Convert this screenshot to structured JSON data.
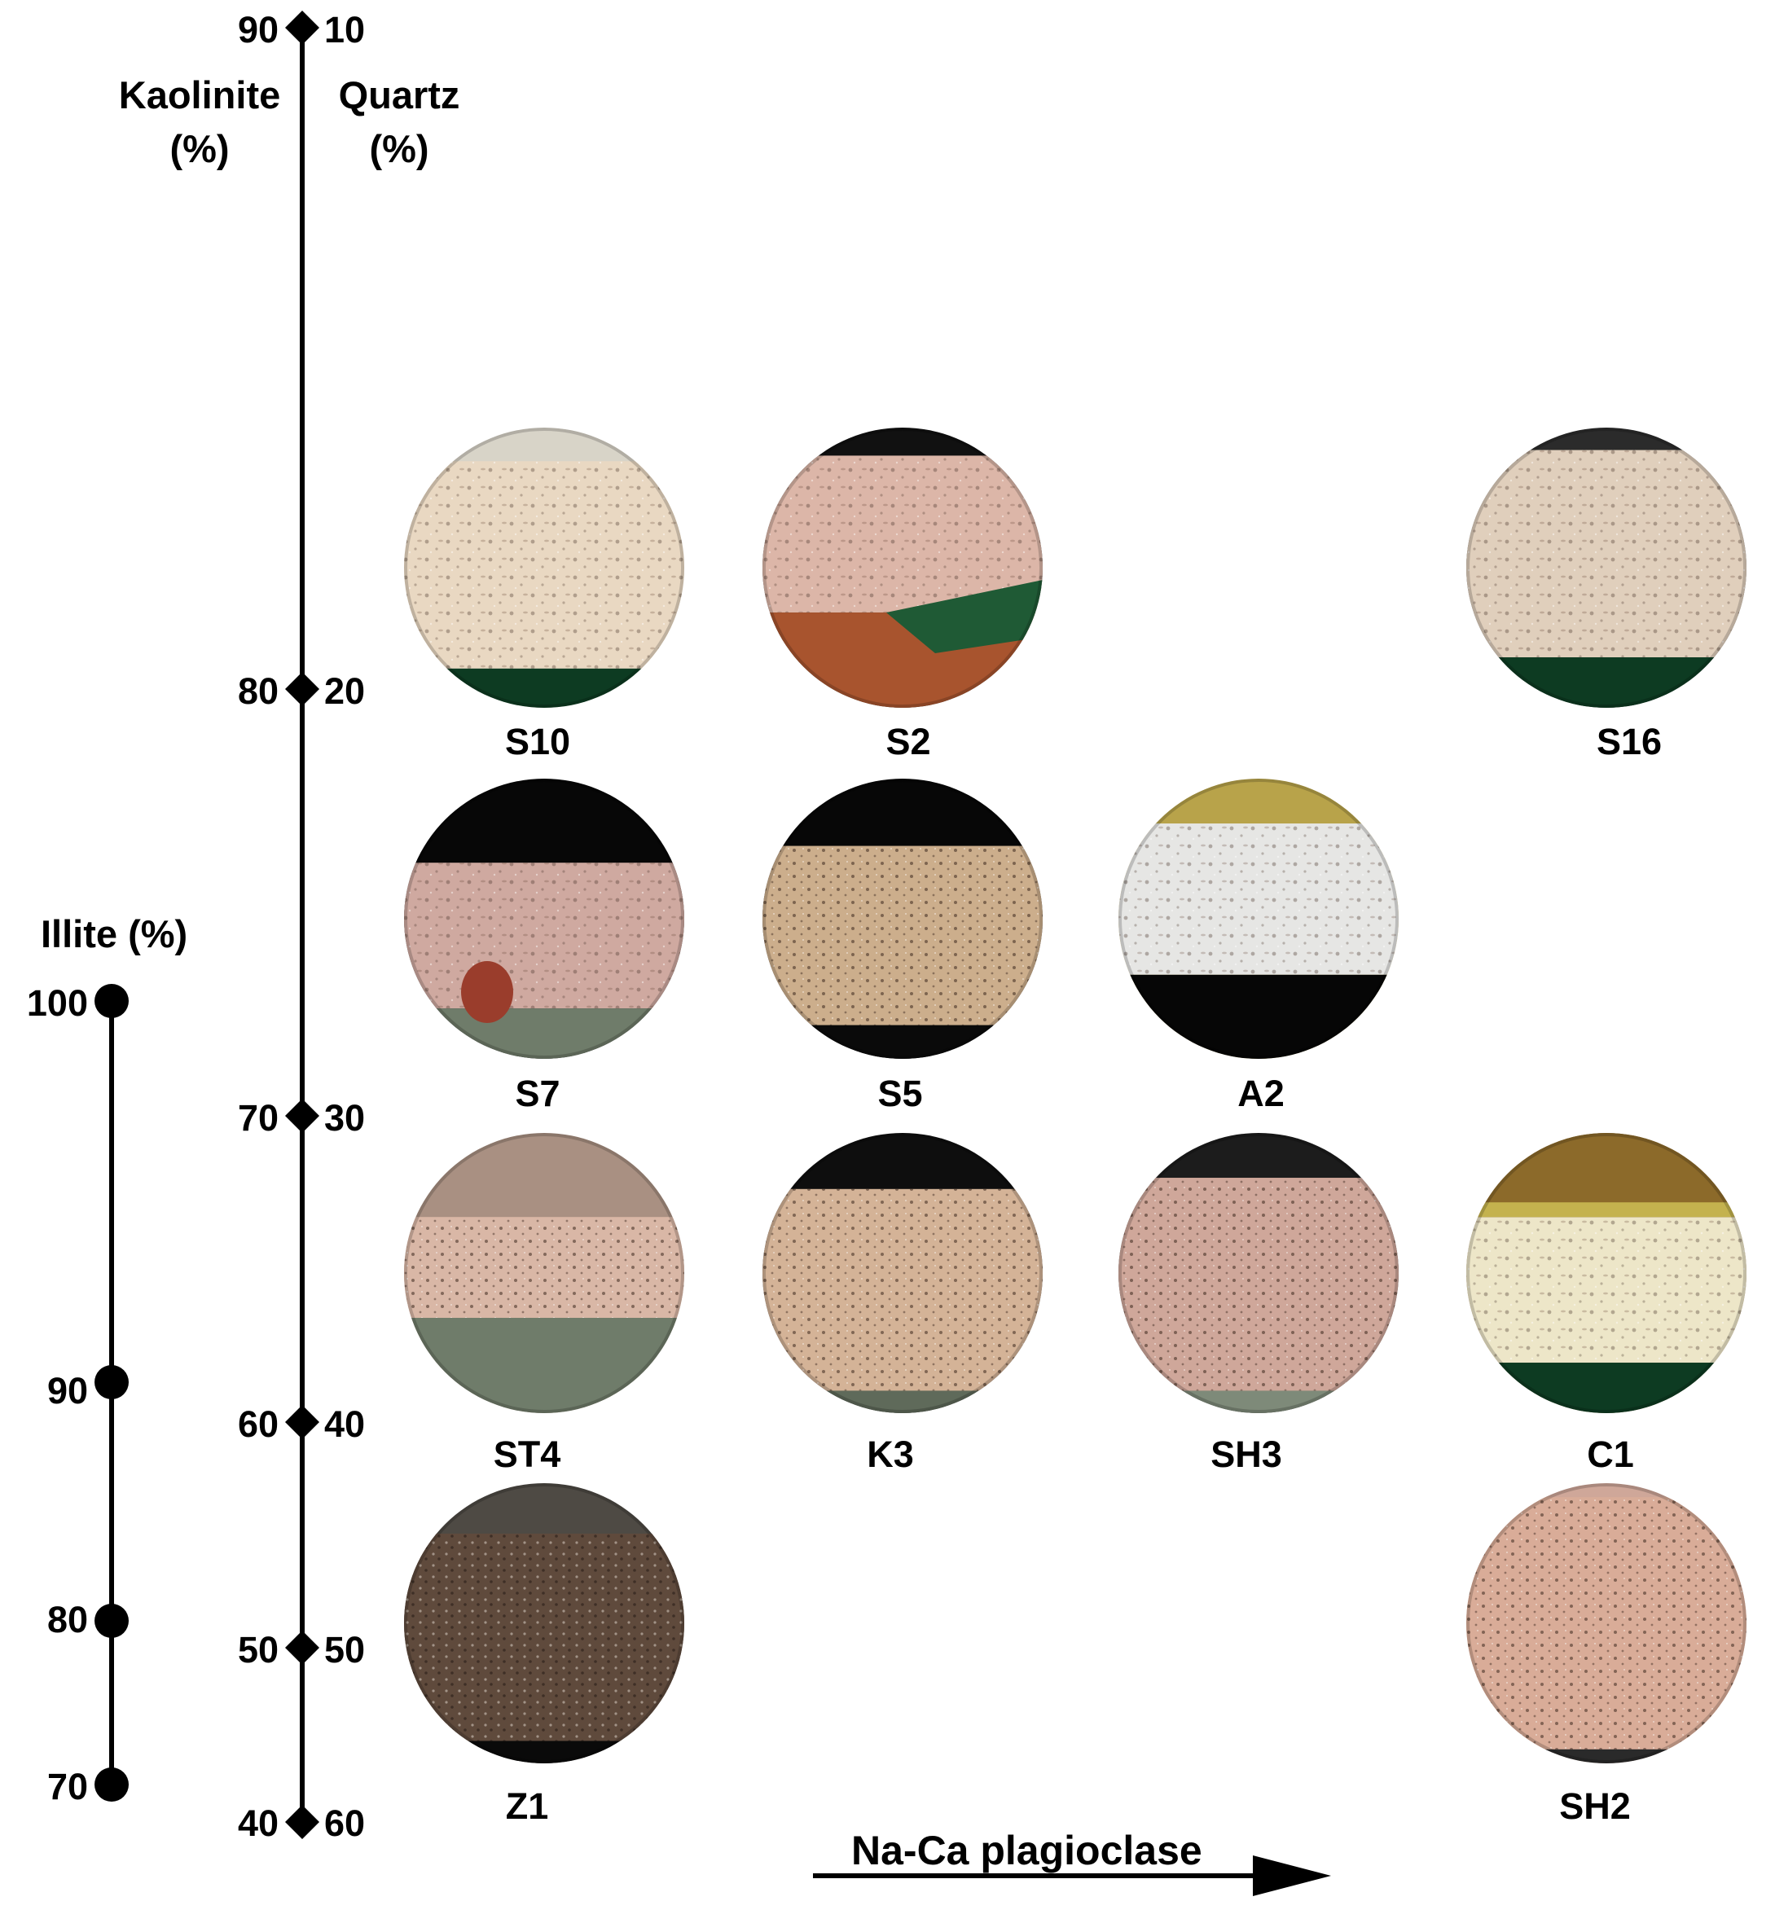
{
  "axes": {
    "kaolinite_title_line1": "Kaolinite",
    "kaolinite_title_line2": "(%)",
    "quartz_title_line1": "Quartz",
    "quartz_title_line2": "(%)",
    "illite_title": "Illite (%)",
    "kaolinite_ticks": [
      "90",
      "80",
      "70",
      "60",
      "50",
      "40"
    ],
    "quartz_ticks": [
      "10",
      "20",
      "30",
      "40",
      "50",
      "60"
    ],
    "illite_ticks": [
      "100",
      "90",
      "80",
      "70"
    ],
    "plagioclase_label": "Na-Ca plagioclase"
  },
  "samples": [
    {
      "id": "S10",
      "kind": "beige-porous"
    },
    {
      "id": "S2",
      "kind": "pink-green-base"
    },
    {
      "id": "S16",
      "kind": "beige-coarse"
    },
    {
      "id": "S7",
      "kind": "pink-dark-top"
    },
    {
      "id": "S5",
      "kind": "tan-dark-top"
    },
    {
      "id": "A2",
      "kind": "white-yellow-top"
    },
    {
      "id": "ST4",
      "kind": "pink-grey-base"
    },
    {
      "id": "K3",
      "kind": "tan-spotted"
    },
    {
      "id": "SH3",
      "kind": "pink-spotted"
    },
    {
      "id": "C1",
      "kind": "cream-yellow-band"
    },
    {
      "id": "Z1",
      "kind": "dark-brown"
    },
    {
      "id": "SH2",
      "kind": "pink-speckled"
    }
  ],
  "colors": {
    "line": "#000000",
    "beige": "#e9d8c2",
    "pink": "#dcb6a8",
    "tan": "#ccae8c",
    "white": "#e6e6e4",
    "dark_brown": "#5f4a3c",
    "green_dark": "#0d3b22",
    "olive_yellow": "#b8a34a",
    "grey_green": "#6f7c6a"
  }
}
